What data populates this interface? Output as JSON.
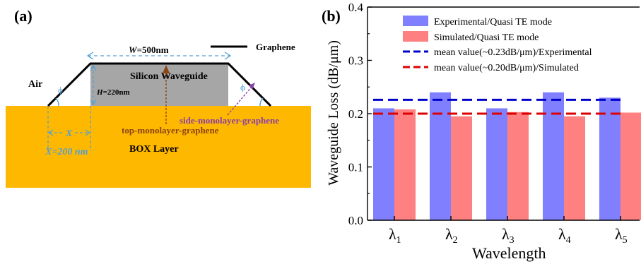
{
  "panel_a": {
    "label": "(a)",
    "width_label_italic": "W",
    "width_label_rest": "=500nm",
    "graphene_label": "Graphene",
    "waveguide_label": "Silicon Waveguide",
    "height_label_italic": "H",
    "height_label_rest": "=220nm",
    "air_label": "Air",
    "angle_symbol": "ϕ",
    "side_graphene_label": "side-monolayer-graphene",
    "top_graphene_label": "top-monolayer-graphene",
    "x_symbol": "X",
    "x_value_label": "X=200 nm",
    "box_label": "BOX Layer",
    "colors": {
      "box": "#ffb800",
      "waveguide": "#a6a6a6",
      "dimension": "#4f9fd6",
      "top_arrow": "#8b4513",
      "side_arrow": "#8a3fa8"
    }
  },
  "chart_data": {
    "label": "(b)",
    "type": "bar",
    "categories": [
      "λ1",
      "λ2",
      "λ3",
      "λ4",
      "λ5"
    ],
    "category_symbol": "λ",
    "category_subscripts": [
      "1",
      "2",
      "3",
      "4",
      "5"
    ],
    "series": [
      {
        "name": "Experimental/Quasi TE mode",
        "values": [
          0.21,
          0.24,
          0.21,
          0.24,
          0.23
        ],
        "color": "#8080ff"
      },
      {
        "name": "Simulated/Quasi TE mode",
        "values": [
          0.208,
          0.195,
          0.203,
          0.195,
          0.202
        ],
        "color": "#ff8080"
      }
    ],
    "mean_lines": [
      {
        "name": "mean value(~0.23dB/μm)/Experimental",
        "value": 0.226,
        "color": "#0000cc"
      },
      {
        "name": "mean value(~0.20dB/μm)/Simulated",
        "value": 0.2,
        "color": "#dd0000"
      }
    ],
    "xlabel": "Wavelength",
    "ylabel": "Waveguide Loss (dB/μm)",
    "ylim": [
      0.0,
      0.4
    ],
    "yticks": [
      "0.0",
      "0.1",
      "0.2",
      "0.3",
      "0.4"
    ],
    "grid": false,
    "legend": "top-right"
  }
}
